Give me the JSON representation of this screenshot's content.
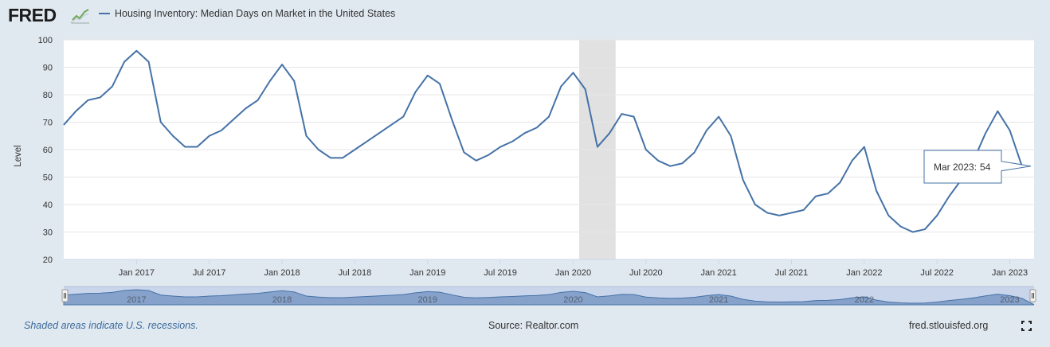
{
  "header": {
    "logo_text": "FRED",
    "legend_label": "Housing Inventory: Median Days on Market in the United States"
  },
  "tooltip": {
    "label": "Mar 2023:",
    "value": "54"
  },
  "footer": {
    "note": "Shaded areas indicate U.S. recessions.",
    "source": "Source: Realtor.com",
    "site": "fred.stlouisfed.org"
  },
  "navigator_years": [
    "2017",
    "2018",
    "2019",
    "2020",
    "2021",
    "2022",
    "2023"
  ],
  "colors": {
    "series": "#4572a7",
    "recession": "#e1e1e1",
    "background": "#e1e9f0",
    "navigator_fill": "#6f8fbf"
  },
  "chart_data": {
    "type": "line",
    "title": "",
    "xlabel": "",
    "ylabel": "Level",
    "ylim": [
      20,
      100
    ],
    "yticks": [
      20,
      30,
      40,
      50,
      60,
      70,
      80,
      90,
      100
    ],
    "x_start": "2016-07",
    "x_end": "2023-03",
    "xtick_labels": [
      "Jan 2017",
      "Jul 2017",
      "Jan 2018",
      "Jul 2018",
      "Jan 2019",
      "Jul 2019",
      "Jan 2020",
      "Jul 2020",
      "Jan 2021",
      "Jul 2021",
      "Jan 2022",
      "Jul 2022",
      "Jan 2023"
    ],
    "grid": true,
    "recessions": [
      [
        "2020-02",
        "2020-04"
      ]
    ],
    "series": [
      {
        "name": "Housing Inventory: Median Days on Market in the United States",
        "values": [
          69,
          74,
          78,
          79,
          83,
          92,
          96,
          92,
          70,
          65,
          61,
          61,
          65,
          67,
          71,
          75,
          78,
          85,
          91,
          85,
          65,
          60,
          57,
          57,
          60,
          63,
          66,
          69,
          72,
          81,
          87,
          84,
          71,
          59,
          56,
          58,
          61,
          63,
          66,
          68,
          72,
          83,
          88,
          82,
          61,
          66,
          73,
          72,
          60,
          56,
          54,
          55,
          59,
          67,
          72,
          65,
          49,
          40,
          37,
          36,
          37,
          38,
          43,
          44,
          48,
          56,
          61,
          45,
          36,
          32,
          30,
          31,
          36,
          43,
          49,
          56,
          66,
          74,
          67,
          54
        ]
      }
    ]
  }
}
